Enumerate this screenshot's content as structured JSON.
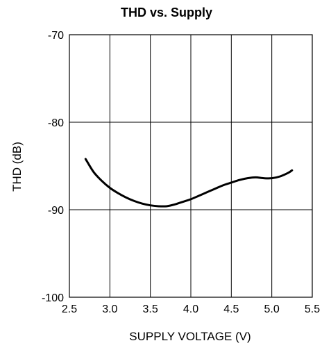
{
  "chart_data": {
    "type": "line",
    "title": "THD vs. Supply",
    "xlabel": "SUPPLY VOLTAGE (V)",
    "ylabel": "THD (dB)",
    "xlim": [
      2.5,
      5.5
    ],
    "ylim": [
      -100,
      -70
    ],
    "x_ticks": [
      2.5,
      3.0,
      3.5,
      4.0,
      4.5,
      5.0,
      5.5
    ],
    "x_tick_labels": [
      "2.5",
      "3.0",
      "3.5",
      "4.0",
      "4.5",
      "5.0",
      "5.5"
    ],
    "y_ticks": [
      -70,
      -80,
      -90,
      -100
    ],
    "y_tick_labels": [
      "-70",
      "-80",
      "-90",
      "-100"
    ],
    "grid": true,
    "series": [
      {
        "x": [
          2.7,
          2.8,
          2.9,
          3.0,
          3.1,
          3.2,
          3.3,
          3.4,
          3.5,
          3.6,
          3.7,
          3.8,
          3.9,
          4.0,
          4.1,
          4.2,
          4.3,
          4.4,
          4.5,
          4.6,
          4.7,
          4.8,
          4.9,
          5.0,
          5.1,
          5.2,
          5.25
        ],
        "y": [
          -84.2,
          -85.7,
          -86.7,
          -87.5,
          -88.1,
          -88.6,
          -89.0,
          -89.3,
          -89.5,
          -89.6,
          -89.6,
          -89.4,
          -89.1,
          -88.8,
          -88.4,
          -88.0,
          -87.6,
          -87.2,
          -86.9,
          -86.6,
          -86.4,
          -86.3,
          -86.4,
          -86.4,
          -86.2,
          -85.8,
          -85.5
        ]
      }
    ],
    "line_color": "#000000"
  }
}
